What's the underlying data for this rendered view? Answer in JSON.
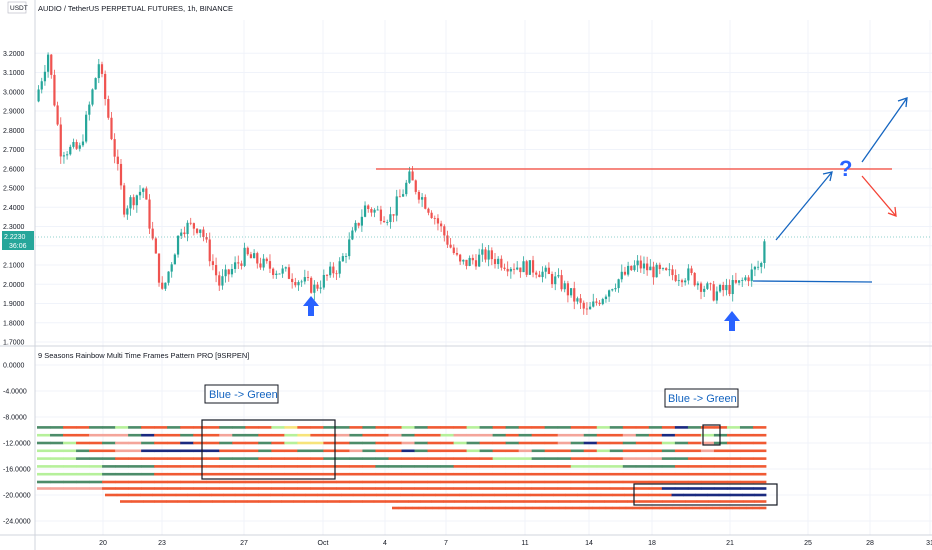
{
  "top_title": "AUDIO / TetherUS PERPETUAL FUTURES, 1h, BINANCE",
  "currency_label": "USDT",
  "price_tag": {
    "value": "2.2230",
    "countdown": "36:06"
  },
  "indicator_title": "9 Seasons Rainbow Multi Time Frames Pattern PRO [9SRPEN]",
  "annotations": {
    "left_label": "Blue -> Green",
    "right_label": "Blue -> Green",
    "question_mark": "?"
  },
  "colors": {
    "up": "#26a69a",
    "down": "#ef5350",
    "red_line": "#f44336",
    "blue_line": "#1565c0",
    "arrow_blue": "#2962ff"
  },
  "chart_data": [
    {
      "type": "candlestick",
      "title": "AUDIO / TetherUS PERPETUAL FUTURES, 1h, BINANCE",
      "ylabel": "USDT",
      "ylim": [
        1.7,
        3.3
      ],
      "y_ticks": [
        "3.2000",
        "3.1000",
        "3.0000",
        "2.9000",
        "2.8000",
        "2.7000",
        "2.6000",
        "2.5000",
        "2.4000",
        "2.3000",
        "2.2000",
        "2.1000",
        "2.0000",
        "1.9000",
        "1.8000",
        "1.7000"
      ],
      "x_ticks": [
        "20",
        "23",
        "27",
        "Oct",
        "4",
        "7",
        "11",
        "14",
        "18",
        "21",
        "25",
        "28",
        "31"
      ],
      "anchors": [
        [
          0,
          2.95
        ],
        [
          4,
          3.2
        ],
        [
          8,
          2.7
        ],
        [
          14,
          2.7
        ],
        [
          20,
          3.15
        ],
        [
          28,
          2.4
        ],
        [
          34,
          2.5
        ],
        [
          40,
          1.95
        ],
        [
          46,
          2.3
        ],
        [
          52,
          2.3
        ],
        [
          58,
          2.0
        ],
        [
          66,
          2.15
        ],
        [
          72,
          2.1
        ],
        [
          80,
          2.05
        ],
        [
          88,
          1.98
        ],
        [
          96,
          2.1
        ],
        [
          104,
          2.4
        ],
        [
          112,
          2.35
        ],
        [
          118,
          2.55
        ],
        [
          126,
          2.35
        ],
        [
          134,
          2.1
        ],
        [
          142,
          2.15
        ],
        [
          150,
          2.1
        ],
        [
          158,
          2.08
        ],
        [
          166,
          2.0
        ],
        [
          174,
          1.85
        ],
        [
          182,
          2.0
        ],
        [
          190,
          2.1
        ],
        [
          198,
          2.05
        ],
        [
          206,
          2.05
        ],
        [
          214,
          1.95
        ],
        [
          222,
          2.0
        ],
        [
          230,
          2.12
        ]
      ],
      "last_price": 2.223
    },
    {
      "type": "ribbon",
      "title": "9 Seasons Rainbow Multi Time Frames Pattern PRO [9SRPEN]",
      "ylim": [
        -24,
        0
      ],
      "y_ticks": [
        "0.0000",
        "-4.0000",
        "-8.0000",
        "-12.0000",
        "-16.0000",
        "-20.0000",
        "-24.0000"
      ]
    }
  ]
}
